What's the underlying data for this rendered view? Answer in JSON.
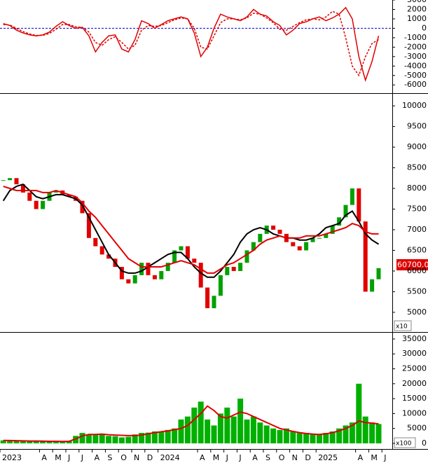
{
  "chart_data": [
    {
      "type": "line",
      "ylim": [
        -6800,
        3000
      ],
      "yticks": [
        3000,
        2000,
        1000,
        0,
        -1000,
        -2000,
        -3000,
        -4000,
        -5000,
        -6000
      ],
      "zero_line_color": "#0000cc",
      "series": [
        {
          "color": "#e00000",
          "dash": false,
          "values": [
            500,
            300,
            -200,
            -500,
            -700,
            -800,
            -700,
            -400,
            200,
            700,
            300,
            0,
            100,
            -800,
            -2500,
            -1500,
            -800,
            -700,
            -2200,
            -2500,
            -1200,
            800,
            500,
            0,
            400,
            800,
            1000,
            1200,
            1000,
            -500,
            -3000,
            -2000,
            0,
            1500,
            1200,
            1000,
            800,
            1200,
            2000,
            1500,
            1300,
            700,
            300,
            -700,
            -200,
            500,
            700,
            1000,
            1200,
            800,
            1100,
            1500,
            2200,
            1000,
            -3000,
            -5500,
            -3500,
            -800,
            null
          ]
        },
        {
          "color": "#e00000",
          "dash": true,
          "values": [
            400,
            350,
            0,
            -350,
            -600,
            -750,
            -750,
            -550,
            -100,
            400,
            400,
            150,
            100,
            -400,
            -1500,
            -1800,
            -1200,
            -900,
            -1500,
            -2200,
            -1800,
            -200,
            300,
            200,
            300,
            600,
            900,
            1100,
            1000,
            0,
            -2000,
            -2200,
            -800,
            600,
            1000,
            1000,
            900,
            1100,
            1600,
            1500,
            1100,
            600,
            -100,
            -200,
            200,
            600,
            900,
            1000,
            900,
            1200,
            1800,
            1500,
            -1000,
            -4000,
            -5000,
            -3000,
            -1600,
            -1200,
            null
          ]
        }
      ]
    },
    {
      "type": "candlestick",
      "ylim": [
        4540,
        10290
      ],
      "yticks": [
        5000,
        5500,
        6000,
        6500,
        7000,
        7500,
        8000,
        8500,
        9000,
        9500,
        10000
      ],
      "unit_label": "x10",
      "last_price_label": "60700.00",
      "up_color": "#00a000",
      "down_color": "#e00000",
      "close": [
        8200,
        8250,
        8100,
        7900,
        7700,
        7500,
        7700,
        7900,
        7950,
        7850,
        7800,
        7700,
        7400,
        6800,
        6600,
        6400,
        6300,
        6100,
        5800,
        5700,
        5900,
        6200,
        5900,
        5800,
        6000,
        6200,
        6500,
        6600,
        6300,
        6200,
        5600,
        5100,
        5400,
        5900,
        6100,
        6000,
        6200,
        6500,
        6700,
        6900,
        7100,
        7000,
        6900,
        6700,
        6600,
        6500,
        6700,
        6800,
        6800,
        6900,
        7100,
        7300,
        7600,
        8000,
        7200,
        5500,
        5800,
        6070,
        null
      ],
      "series": [
        {
          "color": "#000000",
          "values": [
            7700,
            7950,
            8050,
            8100,
            7950,
            7800,
            7750,
            7800,
            7850,
            7850,
            7800,
            7750,
            7600,
            7300,
            7000,
            6700,
            6400,
            6200,
            6000,
            5950,
            5950,
            6000,
            6100,
            6200,
            6300,
            6400,
            6450,
            6450,
            6300,
            6100,
            5950,
            5850,
            5850,
            6000,
            6200,
            6400,
            6700,
            6900,
            7000,
            7050,
            7000,
            6900,
            6850,
            6800,
            6800,
            6750,
            6750,
            6800,
            6900,
            7050,
            7100,
            7150,
            7350,
            7450,
            7200,
            6900,
            6750,
            6650,
            null
          ]
        },
        {
          "color": "#e00000",
          "values": [
            8050,
            8000,
            7950,
            7950,
            7950,
            7950,
            7900,
            7900,
            7950,
            7900,
            7850,
            7800,
            7650,
            7450,
            7300,
            7100,
            6900,
            6700,
            6500,
            6300,
            6200,
            6100,
            6100,
            6100,
            6100,
            6150,
            6200,
            6250,
            6200,
            6150,
            6050,
            5950,
            5950,
            6050,
            6150,
            6200,
            6300,
            6400,
            6500,
            6650,
            6750,
            6800,
            6850,
            6800,
            6800,
            6800,
            6850,
            6850,
            6850,
            6900,
            6950,
            7000,
            7050,
            7150,
            7100,
            6950,
            6900,
            6900,
            null
          ]
        }
      ]
    },
    {
      "type": "bar",
      "ylim": [
        -1650,
        37100
      ],
      "yticks": [
        0,
        5000,
        10000,
        15000,
        20000,
        25000,
        30000,
        35000
      ],
      "unit_label": "x100",
      "categories": [
        "2023",
        null,
        null,
        null,
        null,
        null,
        "A",
        null,
        "M",
        null,
        "J",
        null,
        "J",
        null,
        "A",
        null,
        "S",
        null,
        "O",
        null,
        "N",
        null,
        "D",
        null,
        "2024",
        null,
        null,
        null,
        null,
        null,
        "A",
        null,
        "M",
        null,
        "J",
        null,
        "J",
        null,
        "A",
        null,
        "S",
        null,
        "O",
        null,
        "N",
        null,
        "D",
        null,
        "2025",
        null,
        null,
        null,
        null,
        null,
        "A",
        null,
        "M",
        null,
        "J"
      ],
      "color": "#00b000",
      "values": [
        1000,
        900,
        800,
        900,
        800,
        700,
        700,
        600,
        600,
        700,
        700,
        2500,
        3500,
        3000,
        2800,
        3200,
        2500,
        2400,
        2000,
        2200,
        3000,
        3500,
        3600,
        4000,
        3800,
        4500,
        5000,
        8000,
        9000,
        12000,
        14000,
        8000,
        6000,
        10000,
        12000,
        9000,
        15000,
        8000,
        9000,
        7000,
        6000,
        5000,
        4500,
        5000,
        4000,
        3500,
        3500,
        3200,
        3000,
        3500,
        4000,
        5000,
        6000,
        7000,
        20000,
        9000,
        7000,
        6500,
        null
      ],
      "ma": {
        "color": "#e00000",
        "values": [
          1000,
          950,
          900,
          850,
          800,
          800,
          750,
          700,
          700,
          650,
          700,
          1500,
          2500,
          3000,
          3000,
          3100,
          2900,
          2800,
          2700,
          2600,
          2600,
          2800,
          3200,
          3600,
          3900,
          4200,
          4600,
          5000,
          6000,
          8000,
          10000,
          12500,
          11000,
          9000,
          8500,
          9500,
          10500,
          10000,
          9000,
          8000,
          7000,
          6000,
          5000,
          4500,
          4000,
          3600,
          3300,
          3100,
          3000,
          3200,
          3600,
          4200,
          5000,
          6000,
          7500,
          7000,
          6800,
          6500,
          null
        ]
      }
    }
  ]
}
